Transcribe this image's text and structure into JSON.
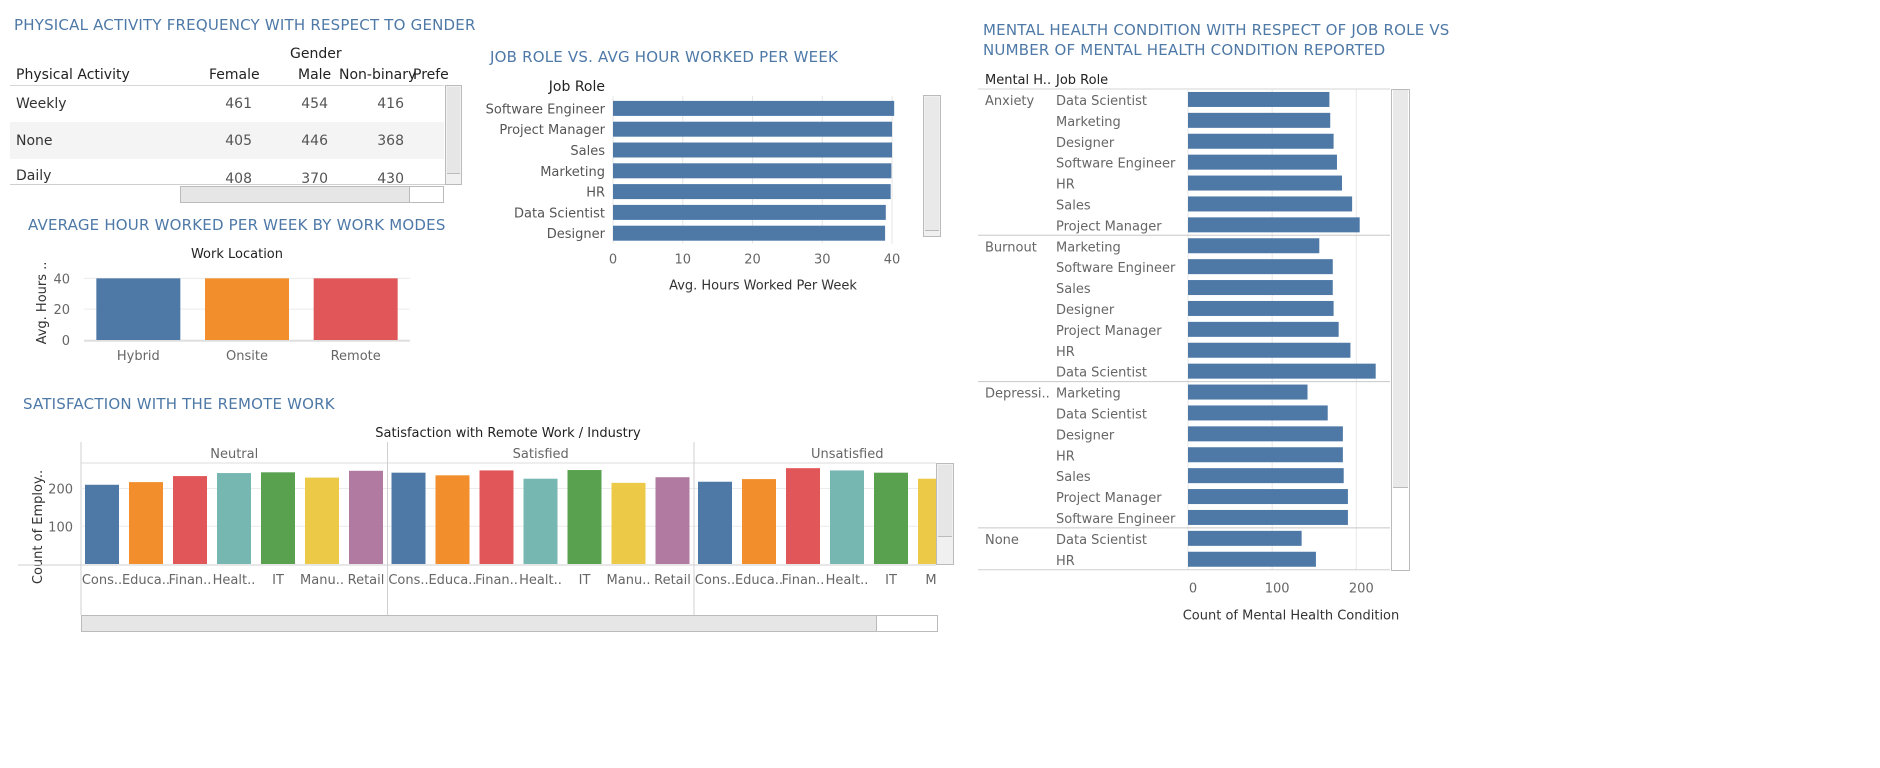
{
  "colors": {
    "title": "#4e79a7",
    "bar_blue": "#4e79a7",
    "orange": "#f28e2b",
    "red": "#e15759",
    "teal": "#76b7b2",
    "green": "#59a14f",
    "yellow": "#edc948",
    "purple": "#b07aa1"
  },
  "activity": {
    "title": "PHYSICAL ACTIVITY FREQUENCY WITH RESPECT TO GENDER",
    "group_header": "Gender",
    "row_header": "Physical Activity",
    "columns": [
      "Female",
      "Male",
      "Non-binary",
      "Prefe"
    ],
    "rows": [
      {
        "label": "Weekly",
        "values": [
          "461",
          "454",
          "416"
        ]
      },
      {
        "label": "None",
        "values": [
          "405",
          "446",
          "368"
        ]
      },
      {
        "label": "Daily",
        "values": [
          "408",
          "370",
          "430"
        ]
      }
    ]
  },
  "jobhours": {
    "title": "JOB ROLE VS. AVG HOUR WORKED PER WEEK",
    "axis_header": "Job Role",
    "xlabel": "Avg. Hours Worked Per Week"
  },
  "workmode": {
    "title": "AVERAGE HOUR WORKED PER WEEK BY WORK MODES",
    "header": "Work Location",
    "ylabel": "Avg. Hours .."
  },
  "remote": {
    "title": "SATISFACTION WITH THE REMOTE WORK",
    "header": "Satisfaction with Remote Work  /  Industry",
    "ylabel": "Count of Employ.."
  },
  "mental": {
    "title_line1": "MENTAL HEALTH CONDITION WITH RESPECT OF JOB ROLE VS",
    "title_line2": "NUMBER OF MENTAL HEALTH CONDITION REPORTED",
    "col1_header": "Mental H..",
    "col2_header": "Job Role",
    "xlabel": "Count of Mental Health Condition"
  },
  "chart_data": [
    {
      "type": "bar",
      "orientation": "horizontal",
      "title": "JOB ROLE VS. AVG HOUR WORKED PER WEEK",
      "xlabel": "Avg. Hours Worked Per Week",
      "ylabel": "Job Role",
      "categories": [
        "Software Engineer",
        "Project Manager",
        "Sales",
        "Marketing",
        "HR",
        "Data Scientist",
        "Designer"
      ],
      "values": [
        40.3,
        40.0,
        40.0,
        39.9,
        39.8,
        39.1,
        39.0
      ],
      "xlim": [
        0,
        43
      ],
      "xticks": [
        0,
        10,
        20,
        30,
        40
      ]
    },
    {
      "type": "bar",
      "title": "AVERAGE HOUR WORKED PER WEEK BY WORK MODES",
      "xlabel": "Work Location",
      "ylabel": "Avg. Hours ..",
      "categories": [
        "Hybrid",
        "Onsite",
        "Remote"
      ],
      "values": [
        40,
        40,
        40
      ],
      "ylim": [
        0,
        48
      ],
      "yticks": [
        0,
        20,
        40
      ]
    },
    {
      "type": "bar",
      "title": "SATISFACTION WITH THE REMOTE WORK",
      "xlabel": "Satisfaction with Remote Work  /  Industry",
      "ylabel": "Count of Employ..",
      "ylim": [
        0,
        265
      ],
      "yticks": [
        100,
        200
      ],
      "groups": [
        {
          "name": "Neutral",
          "categories": [
            "Cons..",
            "Educa..",
            "Finan..",
            "Healt..",
            "IT",
            "Manu..",
            "Retail"
          ],
          "values": [
            210,
            217,
            233,
            241,
            243,
            229,
            247
          ]
        },
        {
          "name": "Satisfied",
          "categories": [
            "Cons..",
            "Educa..",
            "Finan..",
            "Healt..",
            "IT",
            "Manu..",
            "Retail"
          ],
          "values": [
            242,
            235,
            248,
            226,
            249,
            215,
            230
          ]
        },
        {
          "name": "Unsatisfied",
          "categories": [
            "Cons..",
            "Educa..",
            "Finan..",
            "Healt..",
            "IT",
            "Ma"
          ],
          "values": [
            218,
            225,
            254,
            248,
            242,
            226
          ]
        }
      ]
    },
    {
      "type": "bar",
      "orientation": "horizontal",
      "title": "MENTAL HEALTH CONDITION WITH RESPECT OF JOB ROLE VS NUMBER OF MENTAL HEALTH CONDITION REPORTED",
      "xlabel": "Count of Mental Health Condition",
      "xlim": [
        0,
        240
      ],
      "xticks": [
        0,
        100,
        200
      ],
      "groups": [
        {
          "name": "Anxiety",
          "categories": [
            "Data Scientist",
            "Marketing",
            "Designer",
            "Software Engineer",
            "HR",
            "Sales",
            "Project Manager"
          ],
          "values": [
            168,
            169,
            173,
            177,
            183,
            195,
            204
          ]
        },
        {
          "name": "Burnout",
          "categories": [
            "Marketing",
            "Software Engineer",
            "Sales",
            "Designer",
            "Project Manager",
            "HR",
            "Data Scientist"
          ],
          "values": [
            156,
            172,
            172,
            173,
            179,
            193,
            223
          ]
        },
        {
          "name": "Depressi..",
          "categories": [
            "Marketing",
            "Data Scientist",
            "Designer",
            "HR",
            "Sales",
            "Project Manager",
            "Software Engineer"
          ],
          "values": [
            142,
            166,
            184,
            184,
            185,
            190,
            190
          ]
        },
        {
          "name": "None",
          "categories": [
            "Data Scientist",
            "HR"
          ],
          "values": [
            135,
            152
          ]
        }
      ]
    }
  ]
}
